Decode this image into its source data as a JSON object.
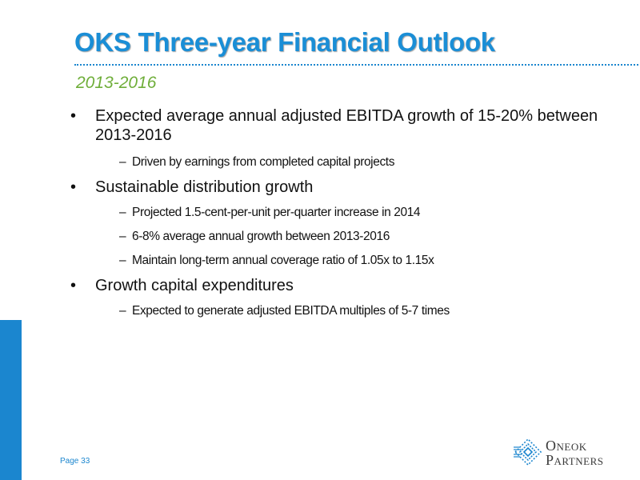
{
  "slide": {
    "title": "OKS Three-year Financial Outlook",
    "subtitle": "2013-2016",
    "page_label": "Page 33"
  },
  "bullets": [
    {
      "text": "Expected average annual adjusted EBITDA growth of 15-20% between 2013-2016",
      "subs": [
        "Driven by earnings from completed capital projects"
      ]
    },
    {
      "text": "Sustainable distribution growth",
      "subs": [
        "Projected 1.5-cent-per-unit per-quarter increase in 2014",
        "6-8% average annual growth between 2013-2016",
        "Maintain long-term annual coverage ratio of 1.05x to 1.15x"
      ]
    },
    {
      "text": "Growth capital expenditures",
      "subs": [
        "Expected to generate adjusted EBITDA multiples of 5-7 times"
      ]
    }
  ],
  "logo": {
    "line1_first": "O",
    "line1_rest": "NEOK",
    "line2_first": "P",
    "line2_rest": "ARTNERS",
    "icon": "oneok-flame-logo-icon",
    "brand_color": "#1b86cf"
  },
  "colors": {
    "title": "#1a8ed6",
    "subtitle": "#6fae3a",
    "accent_bar": "#1b86cf"
  }
}
